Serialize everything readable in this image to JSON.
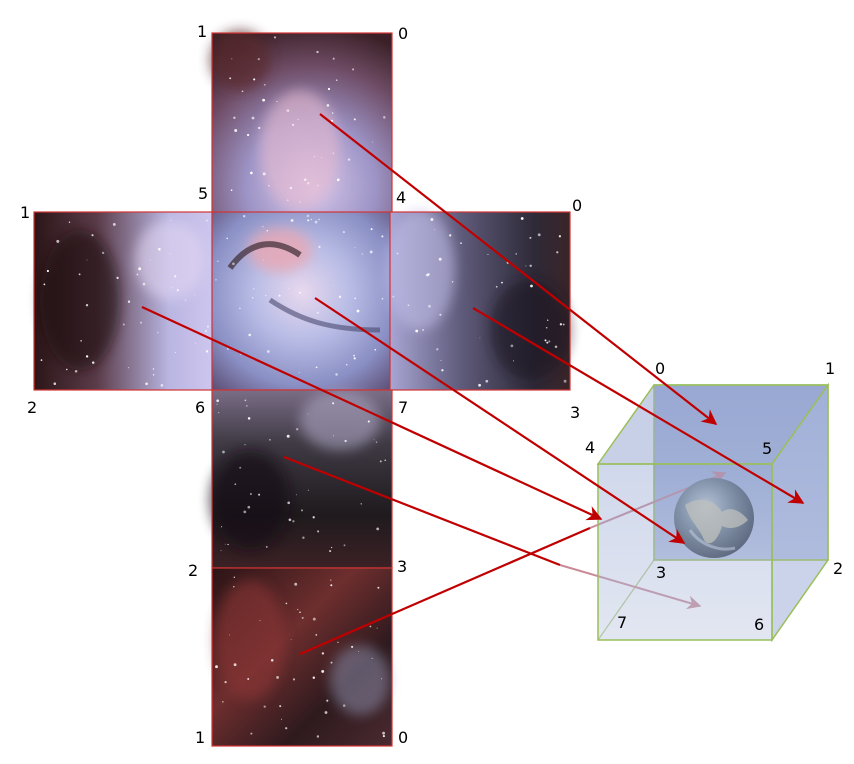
{
  "faces": [
    {
      "id": "top",
      "corners": [
        "1",
        "0",
        "5",
        "4"
      ]
    },
    {
      "id": "left",
      "corners": [
        "1",
        "2"
      ]
    },
    {
      "id": "front",
      "corners": [
        "5",
        "4",
        "6",
        "7"
      ]
    },
    {
      "id": "right",
      "corners": [
        "0",
        "3"
      ]
    },
    {
      "id": "bottom",
      "corners": [
        "6",
        "7",
        "2",
        "3"
      ]
    },
    {
      "id": "back",
      "corners": [
        "2",
        "3",
        "1",
        "0"
      ]
    }
  ],
  "cube_vertices": [
    "0",
    "1",
    "2",
    "3",
    "4",
    "5",
    "6",
    "7"
  ],
  "colors": {
    "face_border": "#d13434",
    "arrow": "#c00000",
    "cube_edge": "#9abf5a",
    "cube_fill": "#8fa3cf",
    "nebula_dark": "#2a1418",
    "nebula_light": "#c9c7ea",
    "nebula_pink": "#b46a78"
  },
  "icons": [
    "earth-globe-icon"
  ]
}
